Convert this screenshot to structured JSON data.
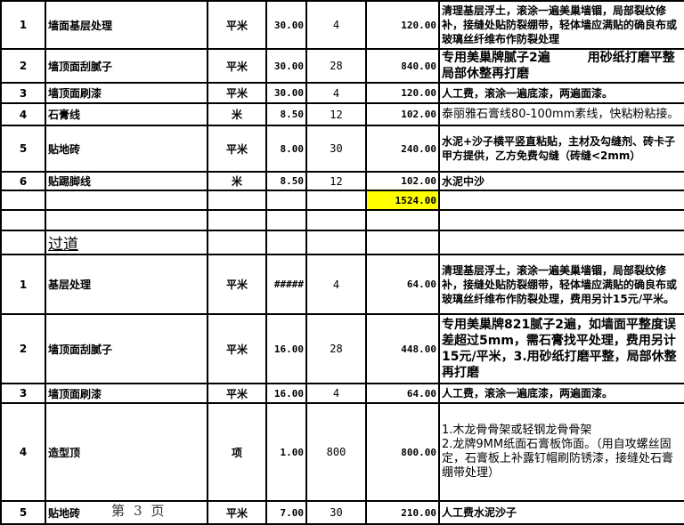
{
  "rows_a": [
    {
      "no": "1",
      "name": "墙面基层处理",
      "unit": "平米",
      "qty": "30.00",
      "price": "4",
      "total": "120.00",
      "desc": "清理基层浮土，滚涂一遍美巢墙锢，局部裂纹修补，接缝处贴防裂绷带，轻体墙应满贴的确良布或玻璃丝纤维布作防裂处理"
    },
    {
      "no": "2",
      "name": "墙顶面刮腻子",
      "unit": "平米",
      "qty": "30.00",
      "price": "28",
      "total": "840.00",
      "desc": "专用美巢牌腻子2遍　　　用砂纸打磨平整局部休整再打磨"
    },
    {
      "no": "3",
      "name": "墙顶面刷漆",
      "unit": "平米",
      "qty": "30.00",
      "price": "4",
      "total": "120.00",
      "desc": "人工费，滚涂一遍底漆，两遍面漆。"
    },
    {
      "no": "4",
      "name": "石膏线",
      "unit": "米",
      "qty": "8.50",
      "price": "12",
      "total": "102.00",
      "desc": "泰丽雅石膏线80-100mm素线，快粘粉粘接。"
    },
    {
      "no": "5",
      "name": "贴地砖",
      "unit": "平米",
      "qty": "8.00",
      "price": "30",
      "total": "240.00",
      "desc": "水泥+沙子横平竖直粘贴，主材及勾缝剂、砖卡子甲方提供，乙方免费勾缝（砖缝<2mm）"
    },
    {
      "no": "6",
      "name": "贴踢脚线",
      "unit": "米",
      "qty": "8.50",
      "price": "12",
      "total": "102.00",
      "desc": "水泥中沙"
    }
  ],
  "subtotal": "1524.00",
  "section_title": "过道",
  "rows_b": [
    {
      "no": "1",
      "name": "基层处理",
      "unit": "平米",
      "qty": "#####",
      "price": "4",
      "total": "64.00",
      "desc": "清理基层浮土，滚涂一遍美巢墙锢，局部裂纹修补，接缝处贴防裂绷带，轻体墙应满贴的确良布或玻璃丝纤维布作防裂处理，费用另计15元/平米。"
    },
    {
      "no": "2",
      "name": "墙顶面刮腻子",
      "unit": "平米",
      "qty": "16.00",
      "price": "28",
      "total": "448.00",
      "desc": "专用美巢牌821腻子2遍，如墙面平整度误差超过5mm，需石膏找平处理，费用另计15元/平米，3.用砂纸打磨平整，局部休整再打磨"
    },
    {
      "no": "3",
      "name": "墙顶面刷漆",
      "unit": "平米",
      "qty": "16.00",
      "price": "4",
      "total": "64.00",
      "desc": "人工费，滚涂一遍底漆，两遍面漆。"
    },
    {
      "no": "4",
      "name": "造型顶",
      "unit": "项",
      "qty": "1.00",
      "price": "800",
      "total": "800.00",
      "desc": "1.木龙骨骨架或轻钢龙骨骨架\n2.龙牌9MM纸面石膏板饰面。（用自攻螺丝固定，石膏板上补露钉帽刷防锈漆，接缝处石膏绷带处理）"
    },
    {
      "no": "5",
      "name": "贴地砖",
      "unit": "平米",
      "qty": "7.00",
      "price": "30",
      "total": "210.00",
      "desc": "人工费水泥沙子"
    }
  ],
  "footer": "第3页",
  "colors": {
    "highlight": "#ffff00",
    "border": "#000000"
  }
}
